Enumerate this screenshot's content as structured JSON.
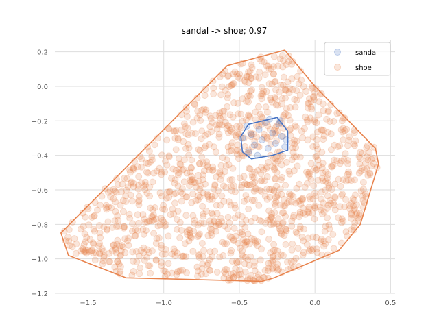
{
  "chart_data": {
    "type": "scatter",
    "title": "sandal -> shoe; 0.97",
    "xlabel": "",
    "ylabel": "",
    "xlim": [
      -1.72,
      0.53
    ],
    "ylim": [
      -1.2,
      0.27
    ],
    "x_ticks": [
      -1.5,
      -1.0,
      -0.5,
      0.0,
      0.5
    ],
    "x_tick_labels": [
      "−1.5",
      "−1.0",
      "−0.5",
      "0.0",
      "0.5"
    ],
    "y_ticks": [
      0.2,
      0.0,
      -0.2,
      -0.4,
      -0.6,
      -0.8,
      -1.0,
      -1.2
    ],
    "y_tick_labels": [
      "0.2",
      "0.0",
      "−0.2",
      "−0.4",
      "−0.6",
      "−0.8",
      "−1.0",
      "−1.2"
    ],
    "grid": true,
    "legend_position": "top-right",
    "series": [
      {
        "name": "sandal",
        "color": "#4472c4",
        "marker_alpha": 0.2,
        "points": [
          [
            -0.48,
            -0.3
          ],
          [
            -0.45,
            -0.23
          ],
          [
            -0.42,
            -0.28
          ],
          [
            -0.4,
            -0.34
          ],
          [
            -0.37,
            -0.25
          ],
          [
            -0.35,
            -0.31
          ],
          [
            -0.33,
            -0.21
          ],
          [
            -0.31,
            -0.36
          ],
          [
            -0.28,
            -0.27
          ],
          [
            -0.26,
            -0.33
          ],
          [
            -0.24,
            -0.22
          ],
          [
            -0.22,
            -0.29
          ],
          [
            -0.2,
            -0.35
          ],
          [
            -0.3,
            -0.19
          ],
          [
            -0.44,
            -0.38
          ],
          [
            -0.38,
            -0.4
          ],
          [
            -0.23,
            -0.2
          ],
          [
            -0.19,
            -0.31
          ]
        ],
        "hull": [
          [
            -0.49,
            -0.29
          ],
          [
            -0.44,
            -0.22
          ],
          [
            -0.25,
            -0.18
          ],
          [
            -0.18,
            -0.26
          ],
          [
            -0.18,
            -0.37
          ],
          [
            -0.28,
            -0.4
          ],
          [
            -0.42,
            -0.42
          ],
          [
            -0.48,
            -0.38
          ]
        ]
      },
      {
        "name": "shoe",
        "color": "#e8834d",
        "marker_alpha": 0.2,
        "sample_count": 1300,
        "hull": [
          [
            -1.68,
            -0.85
          ],
          [
            -1.63,
            -0.98
          ],
          [
            -1.25,
            -1.11
          ],
          [
            -0.35,
            -1.13
          ],
          [
            -0.27,
            -1.11
          ],
          [
            0.16,
            -0.95
          ],
          [
            0.3,
            -0.8
          ],
          [
            0.42,
            -0.45
          ],
          [
            0.4,
            -0.36
          ],
          [
            0.0,
            0.0
          ],
          [
            -0.2,
            0.21
          ],
          [
            -0.58,
            0.12
          ]
        ]
      }
    ]
  }
}
